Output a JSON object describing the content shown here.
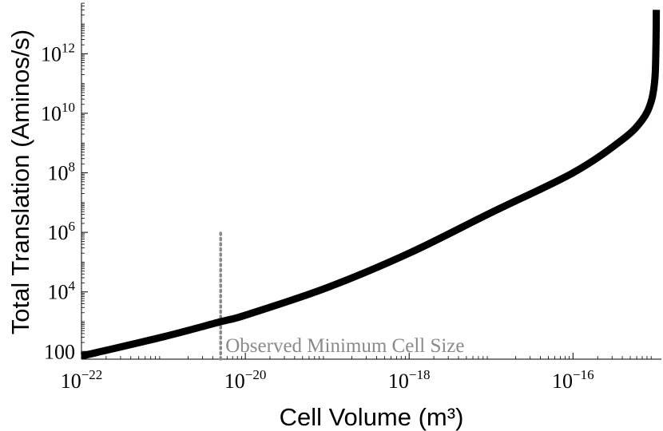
{
  "chart_data": {
    "type": "line",
    "xlabel": "Cell Volume (m³)",
    "ylabel": "Total Translation (Aminos/s)",
    "x_scale": "log",
    "y_scale": "log",
    "xlim": [
      1e-22,
      1.2e-15
    ],
    "ylim": [
      55,
      50000000000000.0
    ],
    "x_ticks": [
      {
        "exp": -22,
        "label": "10−22"
      },
      {
        "exp": -20,
        "label": "10−20"
      },
      {
        "exp": -18,
        "label": "10−18"
      },
      {
        "exp": -16,
        "label": "10−16"
      }
    ],
    "y_ticks": [
      {
        "exp": 2,
        "label": "100"
      },
      {
        "exp": 4,
        "label": "10^4"
      },
      {
        "exp": 6,
        "label": "10^6"
      },
      {
        "exp": 8,
        "label": "10^8"
      },
      {
        "exp": 10,
        "label": "10^10"
      },
      {
        "exp": 12,
        "label": "10^12"
      }
    ],
    "series": [
      {
        "color": "#000000",
        "points": [
          {
            "x": 1e-22,
            "y": 70
          },
          {
            "x": 1e-21,
            "y": 310
          },
          {
            "x": 5e-21,
            "y": 1000
          },
          {
            "x": 1e-20,
            "y": 1650
          },
          {
            "x": 1e-19,
            "y": 14000
          },
          {
            "x": 1e-18,
            "y": 200000
          },
          {
            "x": 1e-17,
            "y": 4600000
          },
          {
            "x": 1e-16,
            "y": 100000000
          },
          {
            "x": 4e-16,
            "y": 1300000000
          },
          {
            "x": 7e-16,
            "y": 6000000000
          },
          {
            "x": 9e-16,
            "y": 25000000000
          },
          {
            "x": 1e-15,
            "y": 150000000000
          },
          {
            "x": 1.03e-15,
            "y": 2000000000000
          },
          {
            "x": 1.04e-15,
            "y": 30000000000000
          }
        ]
      }
    ],
    "annotations": [
      {
        "text": "Observed Minimum Cell Size",
        "x": 5e-21,
        "y_from": 55,
        "y_to": 1000000,
        "style": "dotted",
        "color": "#8a8a8a"
      }
    ],
    "grid": false,
    "legend": "none"
  }
}
